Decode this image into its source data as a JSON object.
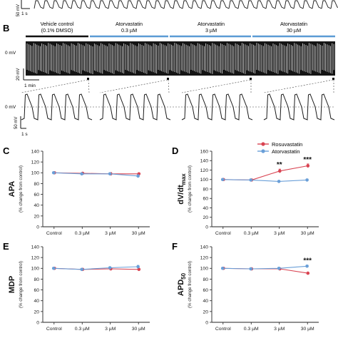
{
  "panel_letters": {
    "b": "B",
    "c": "C",
    "d": "D",
    "e": "E",
    "f": "F"
  },
  "panel_a_fragment": {
    "scale_label": "50 mV",
    "time_label": "1 s"
  },
  "panel_b": {
    "conditions": [
      {
        "line1": "Vehicle control",
        "line2": "(0.1% DMSO)"
      },
      {
        "line1": "Atorvastatin",
        "line2": "0.3 µM"
      },
      {
        "line1": "Atorvastatin",
        "line2": "3 µM"
      },
      {
        "line1": "Atorvastatin",
        "line2": "30 µM"
      }
    ],
    "zero_label": "0 mV",
    "scale_label": "20 mV",
    "time_scale_label": "1 min",
    "zoom_zero_label": "0 mV",
    "zoom_scale_label": "50 mV",
    "zoom_time_label": "1 s",
    "colors": {
      "control": "#111111",
      "treatment": "#5b9bd5",
      "trace": "#1a1a1a"
    }
  },
  "legend": {
    "rosuvastatin": "Rosuvastatin",
    "atorvastatin": "Atorvastatin"
  },
  "colors": {
    "rosuvastatin": "#d94452",
    "atorvastatin": "#6a9fd8",
    "axis": "#222222"
  },
  "chart_data": [
    {
      "id": "C",
      "type": "line",
      "ylabel": "APA",
      "ylabel_sub": "(% change from control)",
      "categories": [
        "Control",
        "0.3 µM",
        "3 µM",
        "30 µM"
      ],
      "ylim": [
        0,
        140
      ],
      "yticks": [
        0,
        20,
        40,
        60,
        80,
        100,
        120,
        140
      ],
      "series": [
        {
          "name": "Rosuvastatin",
          "values": [
            100,
            99,
            98,
            98
          ],
          "errors": [
            0.5,
            1.5,
            2.5,
            1.5
          ]
        },
        {
          "name": "Atorvastatin",
          "values": [
            100,
            98,
            98,
            94
          ],
          "errors": [
            0.5,
            1.5,
            2,
            2.5
          ]
        }
      ],
      "annotations": []
    },
    {
      "id": "D",
      "type": "line",
      "ylabel": "dV/dt",
      "ylabel_sub_main": "max",
      "ylabel_sub": "(% change from control)",
      "categories": [
        "Control",
        "0.3 µM",
        "3 µM",
        "30 µM"
      ],
      "ylim": [
        0,
        160
      ],
      "yticks": [
        0,
        20,
        40,
        60,
        80,
        100,
        120,
        140,
        160
      ],
      "series": [
        {
          "name": "Rosuvastatin",
          "values": [
            100,
            99,
            118,
            129
          ],
          "errors": [
            0.5,
            1.5,
            4,
            4
          ]
        },
        {
          "name": "Atorvastatin",
          "values": [
            100,
            99,
            96,
            99
          ],
          "errors": [
            0.5,
            1.5,
            1.5,
            2
          ]
        }
      ],
      "annotations": [
        {
          "index": 2,
          "text": "**"
        },
        {
          "index": 3,
          "text": "***"
        }
      ]
    },
    {
      "id": "E",
      "type": "line",
      "ylabel": "MDP",
      "ylabel_sub": "(% change from control)",
      "categories": [
        "Control",
        "0.3 µM",
        "3 µM",
        "30 µM"
      ],
      "ylim": [
        0,
        140
      ],
      "yticks": [
        0,
        20,
        40,
        60,
        80,
        100,
        120,
        140
      ],
      "series": [
        {
          "name": "Rosuvastatin",
          "values": [
            100,
            98,
            99,
            98
          ],
          "errors": [
            0.5,
            1,
            1.5,
            2
          ]
        },
        {
          "name": "Atorvastatin",
          "values": [
            100,
            98,
            101,
            103
          ],
          "errors": [
            0.5,
            1,
            2,
            2.5
          ]
        }
      ],
      "annotations": []
    },
    {
      "id": "F",
      "type": "line",
      "ylabel": "APD",
      "ylabel_sub_main": "50",
      "ylabel_sub": "(% change from control)",
      "categories": [
        "Control",
        "0.3 µM",
        "3 µM",
        "30 µM"
      ],
      "ylim": [
        0,
        140
      ],
      "yticks": [
        0,
        20,
        40,
        60,
        80,
        100,
        120,
        140
      ],
      "series": [
        {
          "name": "Rosuvastatin",
          "values": [
            100,
            99,
            99,
            91
          ],
          "errors": [
            0.5,
            1,
            1.5,
            1.5
          ]
        },
        {
          "name": "Atorvastatin",
          "values": [
            100,
            99,
            100,
            104
          ],
          "errors": [
            0.5,
            1,
            1.5,
            2
          ]
        }
      ],
      "annotations": [
        {
          "index": 3,
          "text": "***"
        }
      ]
    }
  ]
}
